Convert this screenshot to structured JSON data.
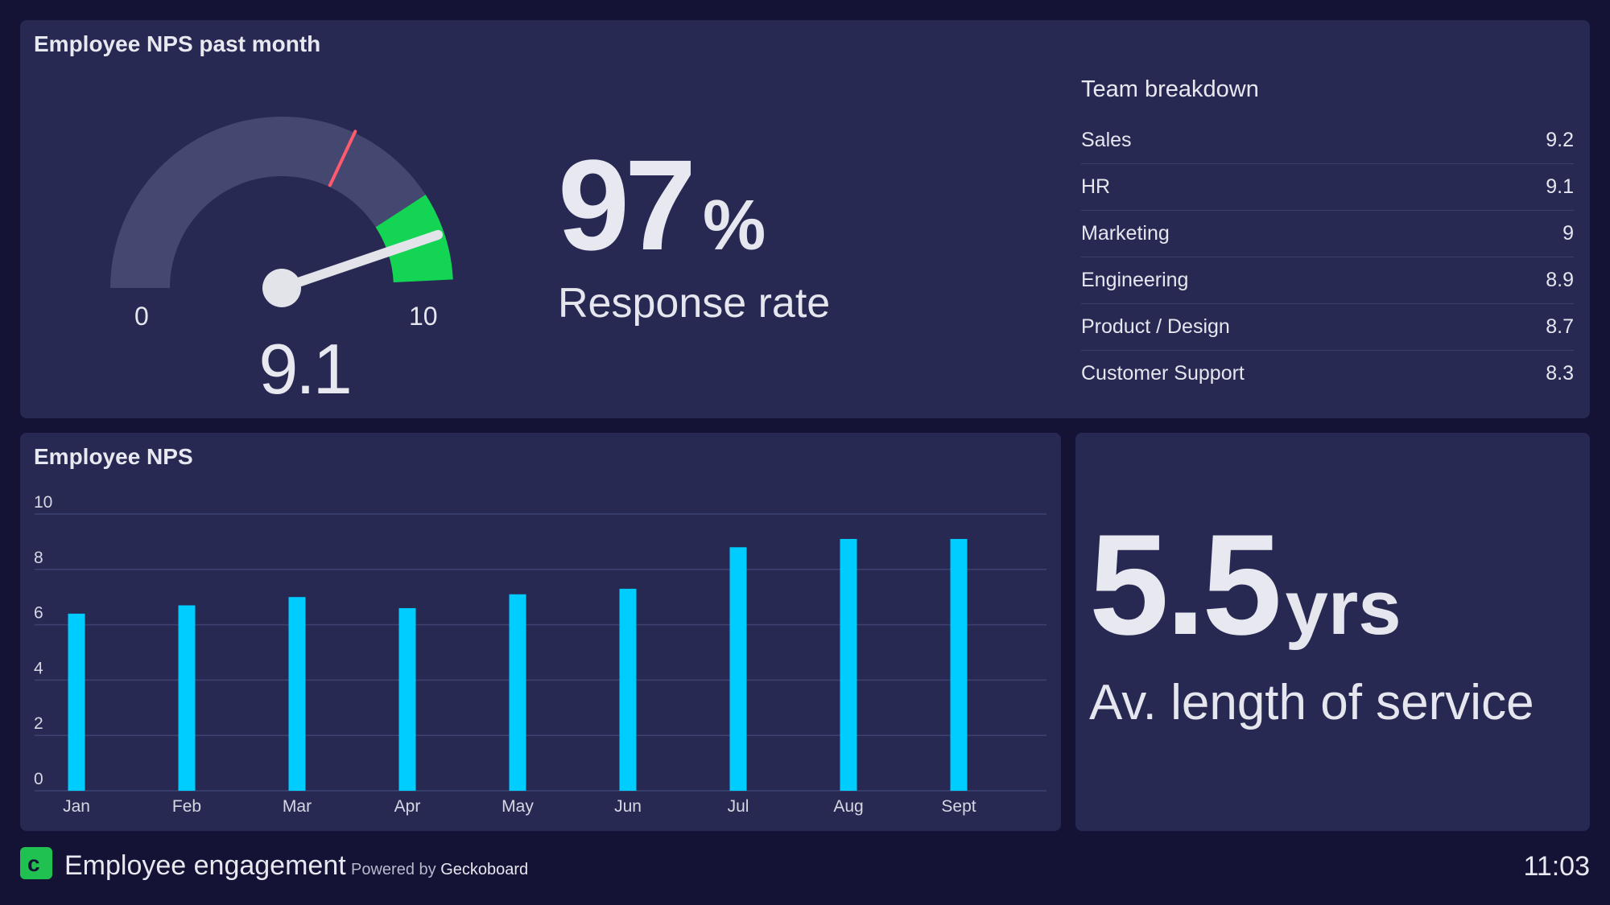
{
  "top_panel": {
    "title": "Employee NPS past month",
    "gauge": {
      "min": "0",
      "max": "10",
      "value": "9.1",
      "value_num": 9.1,
      "threshold": 6.5,
      "green_from": 8.3
    },
    "response": {
      "number": "97",
      "unit": "%",
      "label": "Response rate"
    },
    "breakdown": {
      "title": "Team breakdown",
      "rows": [
        {
          "team": "Sales",
          "score": "9.2"
        },
        {
          "team": "HR",
          "score": "9.1"
        },
        {
          "team": "Marketing",
          "score": "9"
        },
        {
          "team": "Engineering",
          "score": "8.9"
        },
        {
          "team": "Product / Design",
          "score": "8.7"
        },
        {
          "team": "Customer Support",
          "score": "8.3"
        }
      ]
    }
  },
  "chart_panel": {
    "title": "Employee NPS"
  },
  "chart_data": {
    "type": "bar",
    "title": "Employee NPS",
    "categories": [
      "Jan",
      "Feb",
      "Mar",
      "Apr",
      "May",
      "Jun",
      "Jul",
      "Aug",
      "Sept"
    ],
    "values": [
      6.4,
      6.7,
      7.0,
      6.6,
      7.1,
      7.3,
      8.8,
      9.1,
      9.1
    ],
    "ylim": [
      0,
      10
    ],
    "yticks": [
      "0",
      "2",
      "4",
      "6",
      "8",
      "10"
    ],
    "grid": true,
    "bar_color": "#00cdff"
  },
  "service_panel": {
    "number": "5.5",
    "unit": "yrs",
    "label": "Av. length of service"
  },
  "footer": {
    "title": "Employee engagement",
    "powered_prefix": "Powered by",
    "brand": "Geckoboard",
    "time": "11:03"
  },
  "colors": {
    "background": "#141235",
    "panel": "#272953",
    "gauge_track": "#44476f",
    "gauge_green": "#13d453",
    "threshold_red": "#ff5a6e",
    "bar": "#00cdff"
  }
}
